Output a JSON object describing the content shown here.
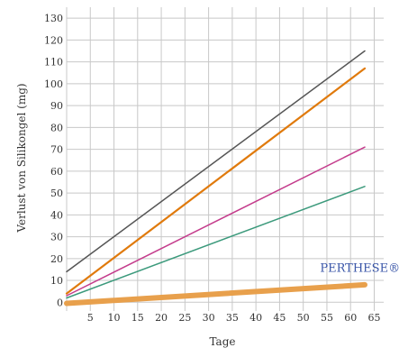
{
  "chart_data": {
    "type": "line",
    "title": "",
    "xlabel": "Tage",
    "ylabel": "Verlust von Silikongel (mg)",
    "xlim": [
      0,
      67
    ],
    "ylim": [
      -4,
      135
    ],
    "x_ticks": [
      5,
      10,
      15,
      20,
      25,
      30,
      35,
      40,
      45,
      50,
      55,
      60,
      65
    ],
    "y_ticks": [
      0,
      10,
      20,
      30,
      40,
      50,
      60,
      70,
      80,
      90,
      100,
      110,
      120,
      130
    ],
    "x_tick_labels": [
      "5",
      "10",
      "15",
      "20",
      "25",
      "30",
      "35",
      "40",
      "45",
      "50",
      "55",
      "60",
      "65"
    ],
    "y_tick_labels": [
      "0",
      "10",
      "20",
      "30",
      "40",
      "50",
      "60",
      "70",
      "80",
      "90",
      "100",
      "110",
      "120",
      "130"
    ],
    "grid": true,
    "series": [
      {
        "color": "#555555",
        "width": 1.5,
        "x": [
          0,
          63
        ],
        "y": [
          14,
          115
        ]
      },
      {
        "color": "#e07a0c",
        "width": 2.2,
        "x": [
          0,
          63
        ],
        "y": [
          4,
          107
        ]
      },
      {
        "color": "#c43c8c",
        "width": 1.5,
        "x": [
          0,
          63
        ],
        "y": [
          3,
          71
        ]
      },
      {
        "color": "#3c9a7c",
        "width": 1.5,
        "x": [
          0,
          63
        ],
        "y": [
          2,
          53
        ]
      },
      {
        "color": "#e8a04c",
        "width": 6,
        "x": [
          0,
          63
        ],
        "y": [
          -0.5,
          8
        ]
      }
    ],
    "annotations": [
      {
        "text": "PERTHESE®",
        "x": 62,
        "y": 14,
        "color": "#3a56a8"
      }
    ]
  }
}
